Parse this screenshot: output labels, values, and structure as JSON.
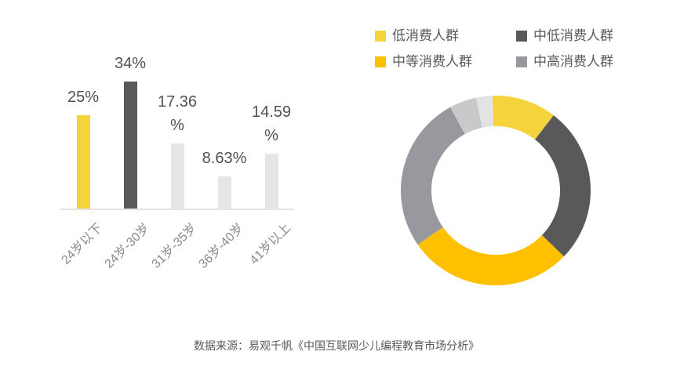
{
  "footer": {
    "text": "数据来源：易观千帆《中国互联网少儿编程教育市场分析》"
  },
  "chart_data": [
    {
      "type": "bar",
      "title": "",
      "xlabel": "",
      "ylabel": "",
      "grid": false,
      "ylim": [
        0,
        39.2
      ],
      "categories": [
        "24岁以下",
        "24岁-30岁",
        "31岁-35岁",
        "36岁-40岁",
        "41岁以上"
      ],
      "category_slugs": [
        "under-24",
        "24-30",
        "31-35",
        "36-40",
        "41-plus"
      ],
      "values": [
        25,
        34,
        17.36,
        8.63,
        14.59
      ],
      "value_labels": [
        "25%",
        "34%",
        "17.36\n%",
        "8.63%",
        "14.59\n%"
      ],
      "bar_colors": [
        "#F5D33D",
        "#595959",
        "#E6E6E6",
        "#E6E6E6",
        "#E6E6E6"
      ],
      "axis_line_color": "#E4E4E4",
      "value_label_color": "#515151",
      "tick_label_color": "#8A8A8A"
    },
    {
      "type": "pie",
      "donut": true,
      "start_angle_deg": -2,
      "segments": [
        {
          "label": "低消费人群",
          "slug": "low-consumption",
          "value_pct": 11.0,
          "color": "#F5D33D",
          "in_legend": true
        },
        {
          "label": "中低消费人群",
          "slug": "mid-low-consumption",
          "value_pct": 26.8,
          "color": "#595959",
          "in_legend": true
        },
        {
          "label": "中等消费人群",
          "slug": "mid-consumption",
          "value_pct": 28.1,
          "color": "#FFC000",
          "in_legend": true
        },
        {
          "label": "中高消费人群",
          "slug": "mid-high-consumption",
          "value_pct": 26.7,
          "color": "#97999E",
          "in_legend": true
        },
        {
          "label": "",
          "slug": "unlabeled-light-gray",
          "value_pct": 4.6,
          "color": "#C9C9CB",
          "in_legend": false
        },
        {
          "label": "",
          "slug": "unlabeled-lighter-gray",
          "value_pct": 2.8,
          "color": "#E3E3E3",
          "in_legend": false
        }
      ],
      "legend": {
        "position": "top-right",
        "items": [
          {
            "label": "低消费人群",
            "slug": "low-consumption",
            "color": "#F5D33D"
          },
          {
            "label": "中低消费人群",
            "slug": "mid-low-consumption",
            "color": "#595959"
          },
          {
            "label": "中等消费人群",
            "slug": "mid-consumption",
            "color": "#FFC000"
          },
          {
            "label": "中高消费人群",
            "slug": "mid-high-consumption",
            "color": "#97999E"
          }
        ]
      }
    }
  ]
}
